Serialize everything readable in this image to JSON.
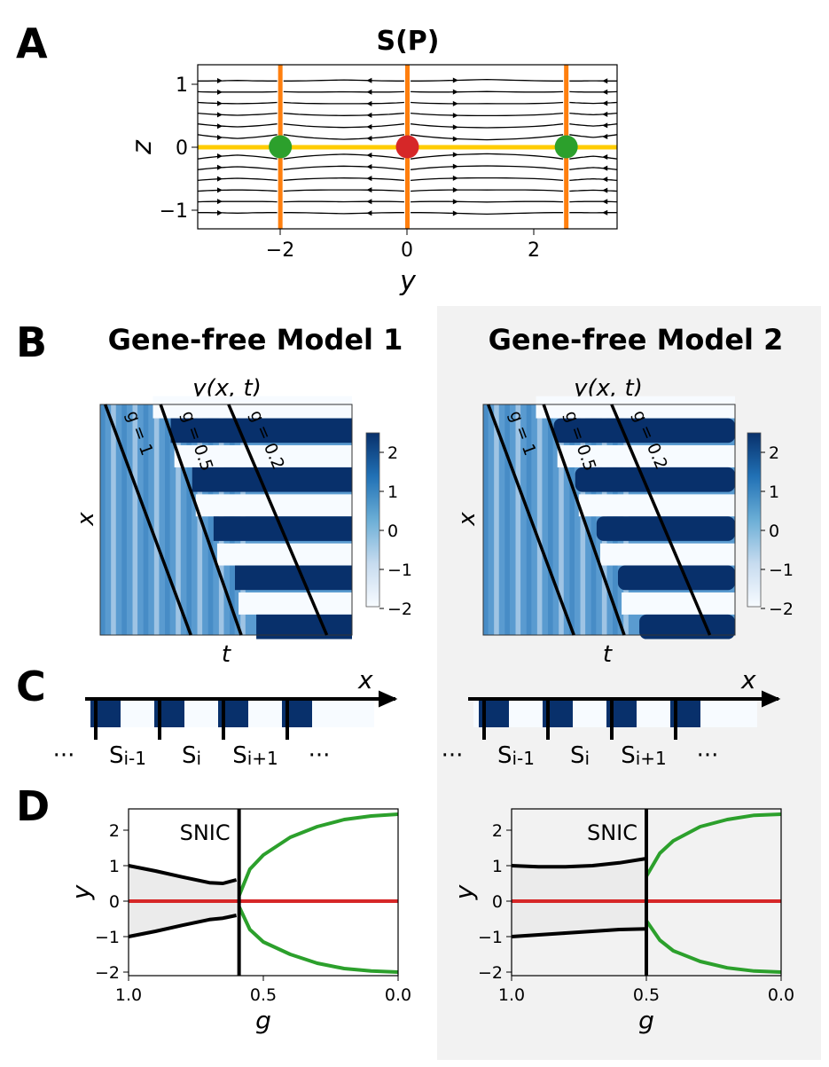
{
  "panel_labels": [
    "A",
    "B",
    "C",
    "D"
  ],
  "colors": {
    "stable_green": "#2ca02c",
    "unstable_red": "#d62728",
    "nullcline_orange": "#ff7f0e",
    "nullcline_yellow": "#ffcc00",
    "colormap_dark": "#08306b",
    "colormap_light": "#f7fbff",
    "shade_panel": "#f2f2f2",
    "shade_region": "#ebebeb",
    "axis": "#000000"
  },
  "panel_A": {
    "title": "S(P)",
    "xlabel": "y",
    "ylabel": "z",
    "xticks": [
      "−2",
      "0",
      "2"
    ],
    "yticks": [
      "1",
      "0",
      "−1"
    ]
  },
  "panel_B": {
    "titles": [
      "Gene-free Model 1",
      "Gene-free Model 2"
    ],
    "subtitle": "y(x, t)",
    "xlabel": "t",
    "ylabel": "x",
    "line_labels": [
      "g = 1",
      "g = 0.5",
      "g = 0.2"
    ],
    "colorbar_ticks": [
      "2",
      "1",
      "0",
      "−1",
      "−2"
    ]
  },
  "panel_C": {
    "axis_label": "x",
    "segments": [
      "···",
      "S",
      "S",
      "S",
      "···"
    ],
    "subscripts": [
      "",
      "i-1",
      "i",
      "i+1",
      ""
    ]
  },
  "panel_D": {
    "annotation": "SNIC",
    "xlabel": "g",
    "ylabel": "y",
    "xticks": [
      "1.0",
      "0.5",
      "0.0"
    ],
    "yticks": [
      "2",
      "1",
      "0",
      "−1",
      "−2"
    ]
  },
  "chart_data": [
    {
      "type": "scatter",
      "title": "S(P)",
      "xlabel": "y",
      "ylabel": "z",
      "xlim": [
        -3.3,
        3.3
      ],
      "ylim": [
        -1.3,
        1.3
      ],
      "vertical_lines_x": [
        -2.0,
        0.0,
        2.5
      ],
      "horizontal_line_y": 0,
      "fixed_points": [
        {
          "x": -2.0,
          "y": 0,
          "stability": "stable"
        },
        {
          "x": 0.0,
          "y": 0,
          "stability": "unstable"
        },
        {
          "x": 2.5,
          "y": 0,
          "stability": "stable"
        }
      ]
    },
    {
      "type": "heatmap",
      "title": "Gene-free Model 1",
      "subtitle": "y(x, t)",
      "xlabel": "t",
      "ylabel": "x",
      "colorbar_range": [
        -2,
        2
      ],
      "line_labels": [
        "g = 1",
        "g = 0.5",
        "g = 0.2"
      ]
    },
    {
      "type": "heatmap",
      "title": "Gene-free Model 2",
      "subtitle": "y(x, t)",
      "xlabel": "t",
      "ylabel": "x",
      "colorbar_range": [
        -2,
        2
      ],
      "line_labels": [
        "g = 1",
        "g = 0.5",
        "g = 0.2"
      ]
    },
    {
      "type": "line",
      "xlabel": "g",
      "ylabel": "y",
      "xlim": [
        1.0,
        0.0
      ],
      "ylim": [
        -2.1,
        2.6
      ],
      "annotation": "SNIC",
      "bifurcation_g": 0.59,
      "series": [
        {
          "x": [
            1.0,
            0.9,
            0.8,
            0.7,
            0.65,
            0.6
          ],
          "values": [
            1.0,
            0.85,
            0.68,
            0.52,
            0.5,
            0.6
          ]
        },
        {
          "x": [
            1.0,
            0.9,
            0.8,
            0.7,
            0.65,
            0.6
          ],
          "values": [
            -1.0,
            -0.85,
            -0.68,
            -0.52,
            -0.48,
            -0.4
          ]
        },
        {
          "x": [
            0.59,
            0.55,
            0.5,
            0.4,
            0.3,
            0.2,
            0.1,
            0.0
          ],
          "values": [
            0.15,
            0.9,
            1.3,
            1.8,
            2.1,
            2.3,
            2.4,
            2.45
          ]
        },
        {
          "x": [
            0.59,
            0.55,
            0.5,
            0.4,
            0.3,
            0.2,
            0.1,
            0.0
          ],
          "values": [
            -0.15,
            -0.8,
            -1.15,
            -1.5,
            -1.75,
            -1.9,
            -1.97,
            -2.0
          ]
        },
        {
          "x": [
            1.0,
            0.0
          ],
          "values": [
            0,
            0
          ]
        }
      ]
    },
    {
      "type": "line",
      "xlabel": "g",
      "ylabel": "y",
      "xlim": [
        1.0,
        0.0
      ],
      "ylim": [
        -2.1,
        2.6
      ],
      "annotation": "SNIC",
      "bifurcation_g": 0.5,
      "series": [
        {
          "x": [
            1.0,
            0.9,
            0.8,
            0.7,
            0.6,
            0.5
          ],
          "values": [
            1.0,
            0.97,
            0.97,
            1.0,
            1.08,
            1.2
          ]
        },
        {
          "x": [
            1.0,
            0.9,
            0.8,
            0.7,
            0.6,
            0.5
          ],
          "values": [
            -1.0,
            -0.95,
            -0.9,
            -0.85,
            -0.8,
            -0.78
          ]
        },
        {
          "x": [
            0.5,
            0.45,
            0.4,
            0.3,
            0.2,
            0.1,
            0.0
          ],
          "values": [
            0.7,
            1.35,
            1.7,
            2.1,
            2.3,
            2.42,
            2.45
          ]
        },
        {
          "x": [
            0.5,
            0.45,
            0.4,
            0.3,
            0.2,
            0.1,
            0.0
          ],
          "values": [
            -0.55,
            -1.1,
            -1.4,
            -1.7,
            -1.88,
            -1.97,
            -2.0
          ]
        },
        {
          "x": [
            1.0,
            0.0
          ],
          "values": [
            0,
            0
          ]
        }
      ]
    }
  ]
}
